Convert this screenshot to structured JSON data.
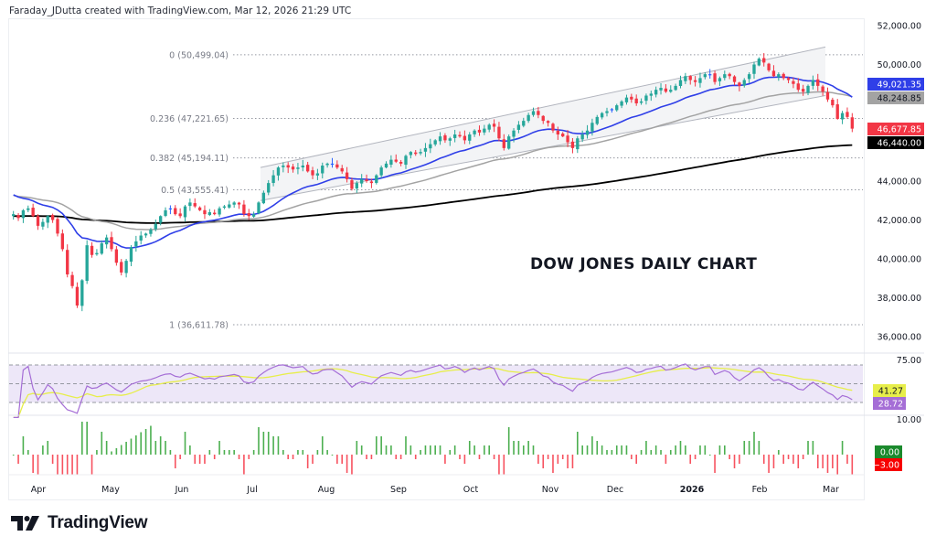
{
  "header": {
    "caption": "Faraday_JDutta created with TradingView.com, Mar 12, 2026 21:29 UTC"
  },
  "brand": {
    "logo_text": "TradingView",
    "logo_icon": "tradingview-logo-icon"
  },
  "colors": {
    "up": "#26a69a",
    "down": "#f23645",
    "neutral_bar": "#2962ff",
    "ma_blue": "#2f3fe8",
    "ma_gray": "#a3a3a3",
    "ma_black": "#000000",
    "rsi_line": "#a56ed6",
    "rsi_ma": "#e7ee4a",
    "rsi_band": "#ede7f8",
    "hist_up": "#4caf50",
    "hist_down": "#f7525f"
  },
  "chart_data": [
    {
      "type": "candlestick",
      "title": "DOW JONES DAILY CHART",
      "ylim": [
        35800,
        52300
      ],
      "y_ticks": [
        "52,000.00",
        "50,000.00",
        "44,000.00",
        "42,000.00",
        "40,000.00",
        "38,000.00",
        "36,000.00"
      ],
      "y_tick_values": [
        52000,
        50000,
        44000,
        42000,
        40000,
        38000,
        36000
      ],
      "x_ticks": [
        "Apr",
        "May",
        "Jun",
        "Jul",
        "Aug",
        "Sep",
        "Oct",
        "Nov",
        "Dec",
        "2026",
        "Feb",
        "Mar"
      ],
      "x_tick_bold": "2026",
      "price_close_series": [
        42300,
        42100,
        42500,
        42600,
        42200,
        41700,
        41900,
        42200,
        42000,
        41300,
        40500,
        39200,
        38600,
        37600,
        38900,
        40700,
        40200,
        40300,
        40800,
        41100,
        40500,
        39800,
        39300,
        39900,
        40600,
        40900,
        41200,
        41300,
        41500,
        41800,
        42200,
        42500,
        42600,
        42300,
        42200,
        42700,
        42900,
        42700,
        42500,
        42300,
        42400,
        42300,
        42600,
        42700,
        42800,
        42900,
        42800,
        42300,
        42200,
        42300,
        42900,
        43400,
        43900,
        44300,
        44700,
        44800,
        44700,
        44600,
        44700,
        44800,
        44500,
        44300,
        44400,
        44800,
        44900,
        44900,
        44700,
        44500,
        44100,
        43600,
        43900,
        44100,
        44000,
        43900,
        44300,
        44700,
        44900,
        45100,
        45000,
        44900,
        45300,
        45500,
        45400,
        45500,
        45700,
        45900,
        46100,
        46300,
        46100,
        46200,
        46400,
        46300,
        46100,
        46400,
        46600,
        46500,
        46700,
        46900,
        46800,
        46200,
        45700,
        46300,
        46600,
        46900,
        47100,
        47400,
        47600,
        47400,
        47100,
        47000,
        46600,
        46400,
        46300,
        46000,
        45700,
        46200,
        46400,
        46600,
        47000,
        47300,
        47500,
        47600,
        47700,
        47900,
        48100,
        48300,
        48200,
        48000,
        48100,
        48400,
        48500,
        48700,
        48800,
        48600,
        48700,
        48900,
        49200,
        49400,
        49200,
        49100,
        49300,
        49500,
        49500,
        49100,
        49300,
        49500,
        49400,
        49100,
        48900,
        49200,
        49500,
        50000,
        50300,
        50100,
        49700,
        49400,
        49500,
        49300,
        49200,
        49000,
        48700,
        48600,
        48900,
        49200,
        48900,
        48600,
        48200,
        47900,
        47200,
        47500,
        47300,
        46700
      ],
      "fib_levels": [
        {
          "label": "0 (50,499.04)",
          "value": 50499.04
        },
        {
          "label": "0.236 (47,221.65)",
          "value": 47221.65
        },
        {
          "label": "0.382 (45,194.11)",
          "value": 45194.11
        },
        {
          "label": "0.5 (43,555.41)",
          "value": 43555.41
        },
        {
          "label": "1 (36,611.78)",
          "value": 36611.78
        }
      ],
      "price_tags": [
        {
          "label": "49,021.35",
          "value": 49021.35,
          "bg": "#2f3fe8",
          "fg": "#ffffff",
          "series": "MA blue"
        },
        {
          "label": "48,248.85",
          "value": 48248.85,
          "bg": "#a3a3a3",
          "fg": "#131722",
          "series": "MA gray"
        },
        {
          "label": "46,677.85",
          "value": 46677.85,
          "bg": "#f23645",
          "fg": "#ffffff",
          "series": "Last price"
        },
        {
          "label": "46,440.00",
          "value": 46440.0,
          "bg": "#000000",
          "fg": "#ffffff",
          "series": "MA black"
        }
      ],
      "channel": {
        "start_value_upper": 44700,
        "end_value_upper": 50900,
        "start_value_lower": 43000,
        "end_value_lower": 48400
      }
    },
    {
      "type": "line",
      "name": "RSI",
      "ylim": [
        0,
        100
      ],
      "bands": [
        75,
        50,
        25
      ],
      "y_ticks": [
        "75.00"
      ],
      "tags": [
        {
          "label": "41.27",
          "bg": "#e7ee4a",
          "fg": "#131722",
          "series": "RSI MA"
        },
        {
          "label": "28.72",
          "bg": "#a56ed6",
          "fg": "#ffffff",
          "series": "RSI"
        }
      ],
      "last_rsi": 28.72,
      "last_rsi_ma": 41.27
    },
    {
      "type": "bar",
      "name": "Histogram",
      "y_ticks": [
        "10.00"
      ],
      "tags": [
        {
          "label": "0.00",
          "bg": "#1b8a2d",
          "fg": "#ffffff"
        },
        {
          "label": "−3.00",
          "bg": "#f70000",
          "fg": "#ffffff"
        }
      ]
    }
  ]
}
